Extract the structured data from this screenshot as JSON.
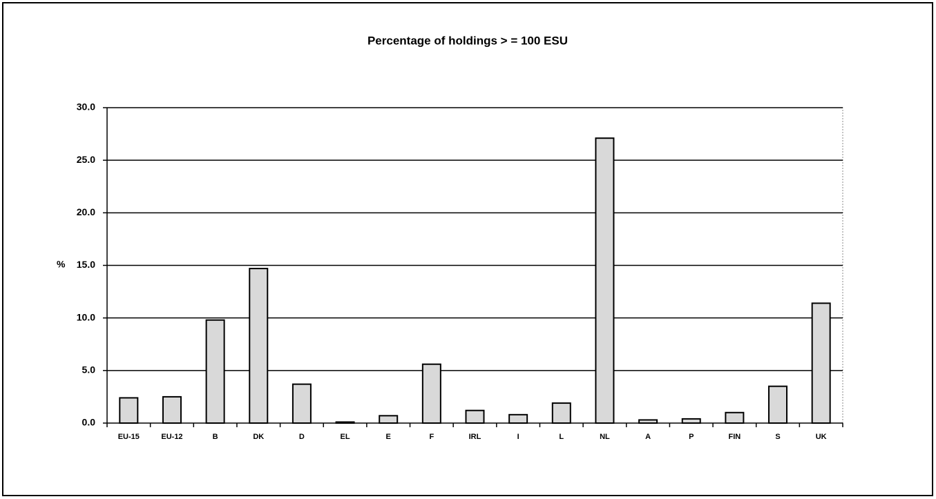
{
  "chart_data": {
    "type": "bar",
    "title": "Percentage of holdings > = 100 ESU",
    "y_label": "%",
    "categories": [
      "EU-15",
      "EU-12",
      "B",
      "DK",
      "D",
      "EL",
      "E",
      "F",
      "IRL",
      "I",
      "L",
      "NL",
      "A",
      "P",
      "FIN",
      "S",
      "UK"
    ],
    "values": [
      2.4,
      2.5,
      9.8,
      14.7,
      3.7,
      0.1,
      0.7,
      5.6,
      1.2,
      0.8,
      1.9,
      27.1,
      0.3,
      0.4,
      1.0,
      3.5,
      11.4
    ],
    "color": "#d9d9d9",
    "ylim": [
      0,
      30
    ],
    "yticks": [
      {
        "value": 0,
        "label": "0.0"
      },
      {
        "value": 5,
        "label": "5.0"
      },
      {
        "value": 10,
        "label": "10.0"
      },
      {
        "value": 15,
        "label": "15.0"
      },
      {
        "value": 20,
        "label": "20.0"
      },
      {
        "value": 25,
        "label": "25.0"
      },
      {
        "value": 30,
        "label": "30.0"
      }
    ],
    "grid": true
  }
}
